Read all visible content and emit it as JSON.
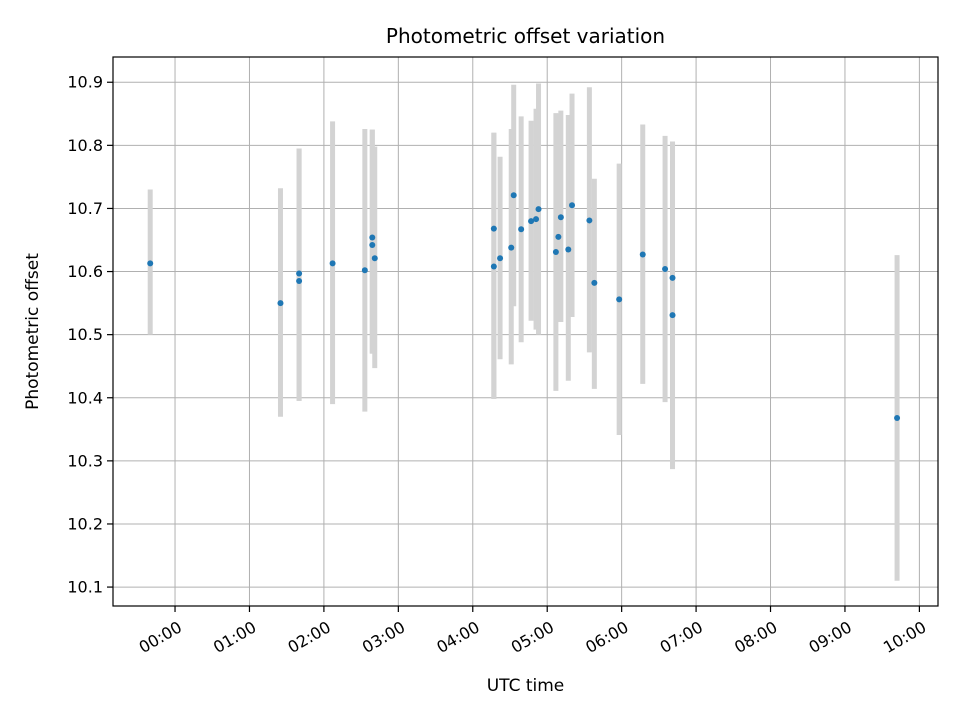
{
  "chart_data": {
    "type": "scatter",
    "title": "Photometric offset variation",
    "xlabel": "UTC time",
    "ylabel": "Photometric offset",
    "x_ticks": [
      "00:00",
      "01:00",
      "02:00",
      "03:00",
      "04:00",
      "05:00",
      "06:00",
      "07:00",
      "08:00",
      "09:00",
      "10:00"
    ],
    "y_ticks": [
      "10.1",
      "10.2",
      "10.3",
      "10.4",
      "10.5",
      "10.6",
      "10.7",
      "10.8",
      "10.9"
    ],
    "xlim": [
      "23:10",
      "10:15"
    ],
    "ylim": [
      10.07,
      10.94
    ],
    "grid": true,
    "marker_color": "#1f77b4",
    "errorbar_color": "#d3d3d3",
    "points": [
      {
        "x": "23:40",
        "y": 10.613,
        "lo": 10.5,
        "hi": 10.73
      },
      {
        "x": "01:25",
        "y": 10.55,
        "lo": 10.37,
        "hi": 10.732
      },
      {
        "x": "01:40",
        "y": 10.585,
        "lo": 10.395,
        "hi": 10.795
      },
      {
        "x": "01:40",
        "y": 10.597,
        "lo": 10.395,
        "hi": 10.795
      },
      {
        "x": "02:07",
        "y": 10.613,
        "lo": 10.39,
        "hi": 10.838
      },
      {
        "x": "02:33",
        "y": 10.602,
        "lo": 10.378,
        "hi": 10.826
      },
      {
        "x": "02:39",
        "y": 10.654,
        "lo": 10.47,
        "hi": 10.825
      },
      {
        "x": "02:39",
        "y": 10.642,
        "lo": 10.47,
        "hi": 10.825
      },
      {
        "x": "02:41",
        "y": 10.621,
        "lo": 10.447,
        "hi": 10.798
      },
      {
        "x": "04:17",
        "y": 10.668,
        "lo": 10.398,
        "hi": 10.82
      },
      {
        "x": "04:17",
        "y": 10.608,
        "lo": 10.398,
        "hi": 10.82
      },
      {
        "x": "04:22",
        "y": 10.621,
        "lo": 10.461,
        "hi": 10.782
      },
      {
        "x": "04:31",
        "y": 10.638,
        "lo": 10.453,
        "hi": 10.826
      },
      {
        "x": "04:33",
        "y": 10.721,
        "lo": 10.545,
        "hi": 10.896
      },
      {
        "x": "04:39",
        "y": 10.667,
        "lo": 10.488,
        "hi": 10.846
      },
      {
        "x": "04:47",
        "y": 10.68,
        "lo": 10.522,
        "hi": 10.839
      },
      {
        "x": "04:51",
        "y": 10.683,
        "lo": 10.508,
        "hi": 10.858
      },
      {
        "x": "04:53",
        "y": 10.699,
        "lo": 10.5,
        "hi": 10.898
      },
      {
        "x": "05:07",
        "y": 10.631,
        "lo": 10.411,
        "hi": 10.851
      },
      {
        "x": "05:09",
        "y": 10.655,
        "lo": 10.52,
        "hi": 10.85
      },
      {
        "x": "05:11",
        "y": 10.686,
        "lo": 10.52,
        "hi": 10.855
      },
      {
        "x": "05:17",
        "y": 10.635,
        "lo": 10.427,
        "hi": 10.848
      },
      {
        "x": "05:20",
        "y": 10.705,
        "lo": 10.528,
        "hi": 10.882
      },
      {
        "x": "05:34",
        "y": 10.681,
        "lo": 10.472,
        "hi": 10.892
      },
      {
        "x": "05:38",
        "y": 10.582,
        "lo": 10.414,
        "hi": 10.747
      },
      {
        "x": "05:58",
        "y": 10.556,
        "lo": 10.341,
        "hi": 10.771
      },
      {
        "x": "06:17",
        "y": 10.627,
        "lo": 10.422,
        "hi": 10.833
      },
      {
        "x": "06:35",
        "y": 10.604,
        "lo": 10.393,
        "hi": 10.815
      },
      {
        "x": "06:41",
        "y": 10.59,
        "lo": 10.374,
        "hi": 10.806
      },
      {
        "x": "06:41",
        "y": 10.531,
        "lo": 10.287,
        "hi": 10.776
      },
      {
        "x": "09:42",
        "y": 10.368,
        "lo": 10.11,
        "hi": 10.626
      }
    ]
  }
}
